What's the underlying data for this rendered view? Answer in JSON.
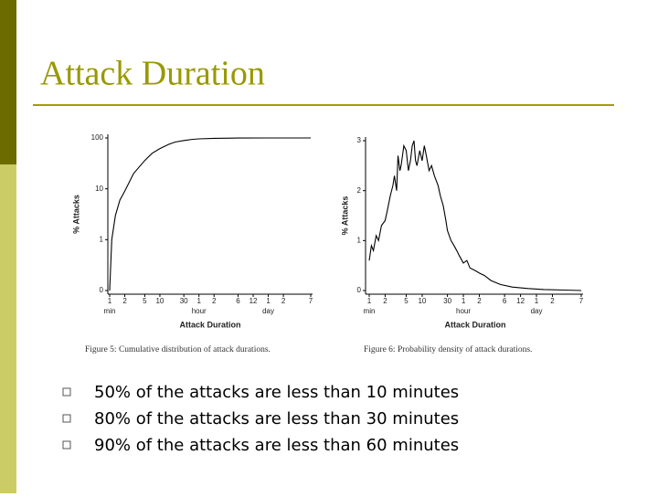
{
  "slide": {
    "title": "Attack Duration",
    "bullets": [
      "50% of the attacks are less than 10 minutes",
      "80% of the attacks are less than 30 minutes",
      "90% of the attacks are less than 60 minutes"
    ]
  },
  "chart_data": [
    {
      "type": "line",
      "caption": "Figure 5: Cumulative distribution of attack durations.",
      "xlabel": "Attack Duration",
      "ylabel": "% Attacks",
      "xscale": "log",
      "yscale": "symlog",
      "xlim": [
        1,
        10080
      ],
      "ylim": [
        0,
        100
      ],
      "xticks": [
        {
          "value": 1,
          "label": "1"
        },
        {
          "value": 2,
          "label": "2"
        },
        {
          "value": 5,
          "label": "5"
        },
        {
          "value": 10,
          "label": "10"
        },
        {
          "value": 30,
          "label": "30"
        },
        {
          "value": 60,
          "label": "1"
        },
        {
          "value": 120,
          "label": "2"
        },
        {
          "value": 360,
          "label": "6"
        },
        {
          "value": 720,
          "label": "12"
        },
        {
          "value": 1440,
          "label": "1"
        },
        {
          "value": 2880,
          "label": "2"
        },
        {
          "value": 10080,
          "label": "7"
        }
      ],
      "x_units": [
        {
          "value": 1,
          "label": "min"
        },
        {
          "value": 60,
          "label": "hour"
        },
        {
          "value": 1440,
          "label": "day"
        }
      ],
      "yticks": [
        0,
        1,
        10,
        100
      ],
      "x": [
        1,
        1.1,
        1.3,
        1.6,
        2,
        3,
        4,
        5,
        7,
        10,
        15,
        20,
        30,
        45,
        60,
        120,
        360,
        1440,
        10080
      ],
      "series": [
        {
          "color": "#000000",
          "values": [
            0,
            1,
            3,
            6,
            9,
            20,
            28,
            36,
            50,
            62,
            75,
            83,
            89,
            94,
            96,
            98.5,
            99.5,
            100,
            100
          ]
        }
      ]
    },
    {
      "type": "line",
      "caption": "Figure 6: Probability density of attack durations.",
      "xlabel": "Attack Duration",
      "ylabel": "% Attacks",
      "xscale": "log",
      "yscale": "linear",
      "xlim": [
        1,
        10080
      ],
      "ylim": [
        0,
        3
      ],
      "xticks": [
        {
          "value": 1,
          "label": "1"
        },
        {
          "value": 2,
          "label": "2"
        },
        {
          "value": 5,
          "label": "5"
        },
        {
          "value": 10,
          "label": "10"
        },
        {
          "value": 30,
          "label": "30"
        },
        {
          "value": 60,
          "label": "1"
        },
        {
          "value": 120,
          "label": "2"
        },
        {
          "value": 360,
          "label": "6"
        },
        {
          "value": 720,
          "label": "12"
        },
        {
          "value": 1440,
          "label": "1"
        },
        {
          "value": 2880,
          "label": "2"
        },
        {
          "value": 10080,
          "label": "7"
        }
      ],
      "x_units": [
        {
          "value": 1,
          "label": "min"
        },
        {
          "value": 60,
          "label": "hour"
        },
        {
          "value": 1440,
          "label": "day"
        }
      ],
      "yticks": [
        0,
        1,
        2,
        3
      ],
      "x": [
        1,
        1.1,
        1.2,
        1.35,
        1.5,
        1.7,
        2,
        2.2,
        2.5,
        2.8,
        3,
        3.3,
        3.5,
        3.8,
        4,
        4.5,
        5,
        5.5,
        6,
        6.5,
        7,
        7.5,
        8,
        9,
        10,
        11,
        12,
        13.5,
        15,
        17,
        20,
        22,
        25,
        28,
        30,
        35,
        40,
        45,
        50,
        60,
        70,
        80,
        100,
        120,
        150,
        200,
        300,
        500,
        1000,
        2000,
        5000,
        10080
      ],
      "series": [
        {
          "color": "#000000",
          "values": [
            0.6,
            0.9,
            0.8,
            1.1,
            1.0,
            1.3,
            1.4,
            1.6,
            1.9,
            2.1,
            2.3,
            2.0,
            2.7,
            2.4,
            2.5,
            2.9,
            2.8,
            2.4,
            2.6,
            2.9,
            3.0,
            2.6,
            2.5,
            2.8,
            2.6,
            2.9,
            2.7,
            2.4,
            2.5,
            2.3,
            2.1,
            1.9,
            1.7,
            1.4,
            1.2,
            1.0,
            0.9,
            0.8,
            0.7,
            0.55,
            0.6,
            0.45,
            0.4,
            0.35,
            0.3,
            0.2,
            0.12,
            0.07,
            0.04,
            0.02,
            0.01,
            0
          ]
        }
      ]
    }
  ]
}
